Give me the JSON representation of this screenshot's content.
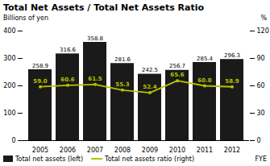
{
  "chart_data": {
    "type": "bar",
    "title": "Total Net Assets / Total Net Assets Ratio",
    "ylabel": "Billions of yen",
    "y2label": "%",
    "xlabel": "FYE",
    "categories": [
      "2005",
      "2006",
      "2007",
      "2008",
      "2009",
      "2010",
      "2011",
      "2012"
    ],
    "series": [
      {
        "name": "Total net assets (left)",
        "type": "bar",
        "color": "#1a1a1a",
        "values": [
          258.9,
          316.6,
          358.8,
          281.6,
          242.5,
          256.7,
          285.4,
          296.3
        ]
      },
      {
        "name": "Total net assets ratio (right)",
        "type": "line",
        "axis": "y2",
        "color": "#b5c200",
        "marker": "circle",
        "values": [
          59.0,
          60.6,
          61.5,
          55.3,
          52.4,
          65.6,
          60.0,
          58.9
        ],
        "value_labels": [
          "59.0",
          "60.6",
          "61.5",
          "55.3",
          "52.4",
          "65.6",
          "60.0",
          "58.9"
        ]
      }
    ],
    "ylim": [
      0,
      400
    ],
    "yticks": [
      0,
      100,
      200,
      300,
      400
    ],
    "y2lim": [
      0,
      120
    ],
    "y2ticks": [
      0,
      30,
      60,
      90,
      120
    ],
    "data_labels": true,
    "legend": "lower left",
    "grid": false
  }
}
